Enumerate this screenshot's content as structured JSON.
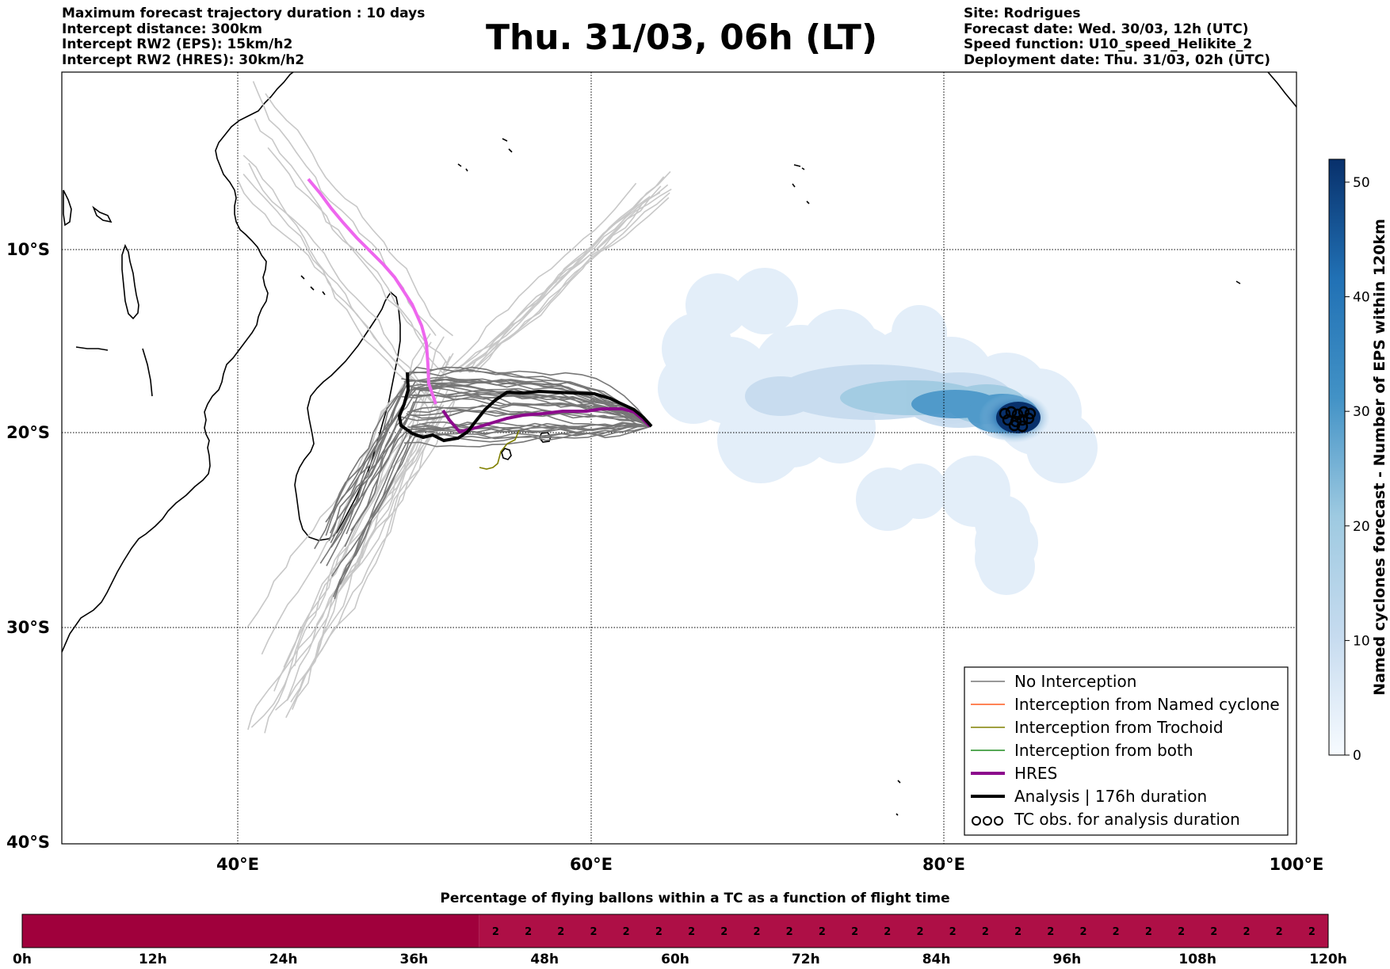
{
  "header": {
    "left_lines": [
      "Maximum forecast trajectory duration : 10 days",
      "Intercept distance: 300km",
      "Intercept RW2 (EPS):  15km/h2",
      "Intercept RW2 (HRES): 30km/h2"
    ],
    "title": "Thu. 31/03, 06h (LT)",
    "right_lines": [
      "Site: Rodrigues",
      "Forecast date: Wed. 30/03, 12h (UTC)",
      "Speed function: U10_speed_Helikite_2",
      "Deployment date: Thu. 31/03, 02h (UTC)"
    ]
  },
  "map": {
    "lat_labels": [
      "10°S",
      "20°S",
      "30°S",
      "40°S"
    ],
    "lon_labels": [
      "40°E",
      "60°E",
      "80°E",
      "100°E"
    ],
    "lon_range": [
      30,
      100
    ],
    "lat_range": [
      -40,
      -1
    ],
    "grid": true,
    "colors": {
      "no_interception": "#777777",
      "other_tracks": "#c8c8c8",
      "named_cyclone": "#ff5a1e",
      "trochoid": "#808000",
      "both": "#1e8c1e",
      "hres": "#8c0a8c",
      "hres_early": "#ee66ee",
      "analysis": "#000000",
      "density_low": "#e3eef9",
      "density_high": "#08306b"
    }
  },
  "legend": {
    "items": [
      {
        "label": "No Interception",
        "color": "#777777",
        "style": "thin"
      },
      {
        "label": "Interception from Named cyclone",
        "color": "#ff5a1e",
        "style": "thin"
      },
      {
        "label": "Interception from Trochoid",
        "color": "#808000",
        "style": "thin"
      },
      {
        "label": "Interception from both",
        "color": "#1e8c1e",
        "style": "thin"
      },
      {
        "label": "HRES",
        "color": "#8c0a8c",
        "style": "thick"
      },
      {
        "label": "Analysis | 176h duration",
        "color": "#000000",
        "style": "thick"
      },
      {
        "label": "TC obs. for analysis duration",
        "color": "#000000",
        "style": "circles"
      }
    ]
  },
  "colorbar": {
    "title": "Named cyclones forecast - Number of EPS within 120km",
    "ticks": [
      "0",
      "10",
      "20",
      "30",
      "40",
      "50"
    ],
    "range": [
      0,
      52
    ]
  },
  "bottom_bar": {
    "title": "Percentage of flying ballons within a TC as a function of flight time",
    "tick_labels": [
      "0h",
      "12h",
      "24h",
      "36h",
      "48h",
      "60h",
      "72h",
      "84h",
      "96h",
      "108h",
      "120h"
    ],
    "hours_range": [
      0,
      120
    ],
    "percent_start_hour": 42,
    "percent_step_hours": 3,
    "percent_value": "2",
    "percent_count": 26,
    "color_zero": "#a0003c",
    "color_low": "#ae0f46"
  }
}
